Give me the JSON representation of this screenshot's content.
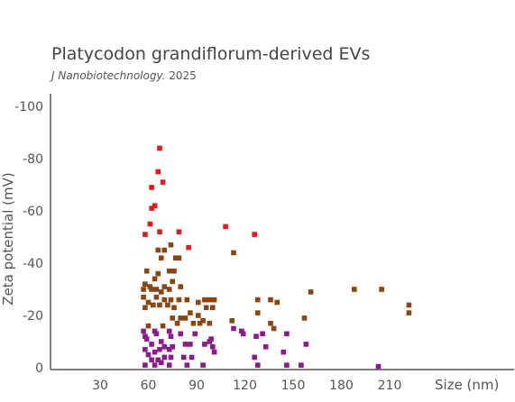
{
  "chart_data": {
    "type": "scatter",
    "title": "Platycodon grandiflorum-derived EVs",
    "subtitle_journal": "J Nanobiotechnology.",
    "subtitle_year": "2025",
    "xlabel": "Size (nm)",
    "ylabel": "Zeta potential (mV)",
    "xlim": [
      10,
      245
    ],
    "ylim": [
      0,
      -100
    ],
    "x_ticks": [
      30,
      60,
      90,
      120,
      150,
      180,
      210
    ],
    "y_ticks": [
      0,
      -20,
      -40,
      -60,
      -80,
      -100
    ],
    "y_tick_labels": [
      "0",
      "-20",
      "-40",
      "-60",
      "-80",
      "-100"
    ],
    "grid": false,
    "legend": "none",
    "colors": {
      "high": "#e31a1c",
      "mid": "#8b4513",
      "low": "#8b1a8b"
    },
    "series": [
      {
        "color_key": "high",
        "points": [
          [
            67,
            -84
          ],
          [
            66,
            -75
          ],
          [
            69,
            -71
          ],
          [
            62,
            -69
          ],
          [
            64,
            -62
          ],
          [
            62,
            -61
          ],
          [
            61,
            -55
          ],
          [
            58,
            -51
          ],
          [
            67,
            -52
          ],
          [
            79,
            -52
          ],
          [
            85,
            -46
          ],
          [
            108,
            -54
          ],
          [
            126,
            -51
          ]
        ]
      },
      {
        "color_key": "mid",
        "points": [
          [
            66,
            -45
          ],
          [
            70,
            -45
          ],
          [
            68,
            -42
          ],
          [
            77,
            -42
          ],
          [
            79,
            -42
          ],
          [
            74,
            -47
          ],
          [
            59,
            -37
          ],
          [
            66,
            -36
          ],
          [
            64,
            -34
          ],
          [
            73,
            -37
          ],
          [
            76,
            -37
          ],
          [
            75,
            -33
          ],
          [
            58,
            -32
          ],
          [
            61,
            -31
          ],
          [
            70,
            -31
          ],
          [
            80,
            -31
          ],
          [
            57,
            -30
          ],
          [
            62,
            -30
          ],
          [
            65,
            -30
          ],
          [
            73,
            -30
          ],
          [
            68,
            -29
          ],
          [
            57,
            -27
          ],
          [
            65,
            -27
          ],
          [
            70,
            -26
          ],
          [
            74,
            -26
          ],
          [
            79,
            -26
          ],
          [
            84,
            -26
          ],
          [
            60,
            -25
          ],
          [
            63,
            -24
          ],
          [
            67,
            -24
          ],
          [
            72,
            -24
          ],
          [
            58,
            -23
          ],
          [
            76,
            -23
          ],
          [
            91,
            -25
          ],
          [
            95,
            -26
          ],
          [
            98,
            -26
          ],
          [
            101,
            -26
          ],
          [
            96,
            -23
          ],
          [
            100,
            -23
          ],
          [
            86,
            -21
          ],
          [
            91,
            -20
          ],
          [
            75,
            -19
          ],
          [
            80,
            -19
          ],
          [
            83,
            -19
          ],
          [
            94,
            -18
          ],
          [
            78,
            -17
          ],
          [
            88,
            -17
          ],
          [
            60,
            -16
          ],
          [
            69,
            -16
          ],
          [
            92,
            -17
          ],
          [
            98,
            -17
          ],
          [
            113,
            -44
          ],
          [
            112,
            -18
          ],
          [
            128,
            -26
          ],
          [
            136,
            -26
          ],
          [
            128,
            -21
          ],
          [
            140,
            -25
          ],
          [
            136,
            -17
          ],
          [
            138,
            -15
          ],
          [
            157,
            -19
          ],
          [
            161,
            -29
          ],
          [
            188,
            -30
          ],
          [
            205,
            -30
          ],
          [
            222,
            -24
          ],
          [
            222,
            -21
          ]
        ]
      },
      {
        "color_key": "low",
        "points": [
          [
            57,
            -14
          ],
          [
            64,
            -14
          ],
          [
            73,
            -14
          ],
          [
            58,
            -12
          ],
          [
            65,
            -13
          ],
          [
            74,
            -12
          ],
          [
            59,
            -11
          ],
          [
            68,
            -10
          ],
          [
            62,
            -9
          ],
          [
            70,
            -8
          ],
          [
            75,
            -8
          ],
          [
            80,
            -13
          ],
          [
            89,
            -13
          ],
          [
            58,
            -7
          ],
          [
            64,
            -6
          ],
          [
            67,
            -7
          ],
          [
            73,
            -7
          ],
          [
            83,
            -9
          ],
          [
            86,
            -9
          ],
          [
            95,
            -9
          ],
          [
            98,
            -10
          ],
          [
            99,
            -11
          ],
          [
            100,
            -8
          ],
          [
            101,
            -6
          ],
          [
            60,
            -5
          ],
          [
            70,
            -4
          ],
          [
            74,
            -4
          ],
          [
            82,
            -4
          ],
          [
            87,
            -4
          ],
          [
            62,
            -3
          ],
          [
            66,
            -3
          ],
          [
            68,
            -2
          ],
          [
            58,
            -1
          ],
          [
            64,
            -1
          ],
          [
            73,
            -1
          ],
          [
            84,
            -1
          ],
          [
            94,
            -1
          ],
          [
            113,
            -15
          ],
          [
            118,
            -14
          ],
          [
            119,
            -13
          ],
          [
            127,
            -12
          ],
          [
            131,
            -13
          ],
          [
            133,
            -8
          ],
          [
            126,
            -4
          ],
          [
            146,
            -13
          ],
          [
            144,
            -6
          ],
          [
            158,
            -9
          ],
          [
            128,
            -1
          ],
          [
            146,
            -1
          ],
          [
            155,
            -1
          ],
          [
            203,
            -0.5
          ]
        ]
      }
    ]
  }
}
